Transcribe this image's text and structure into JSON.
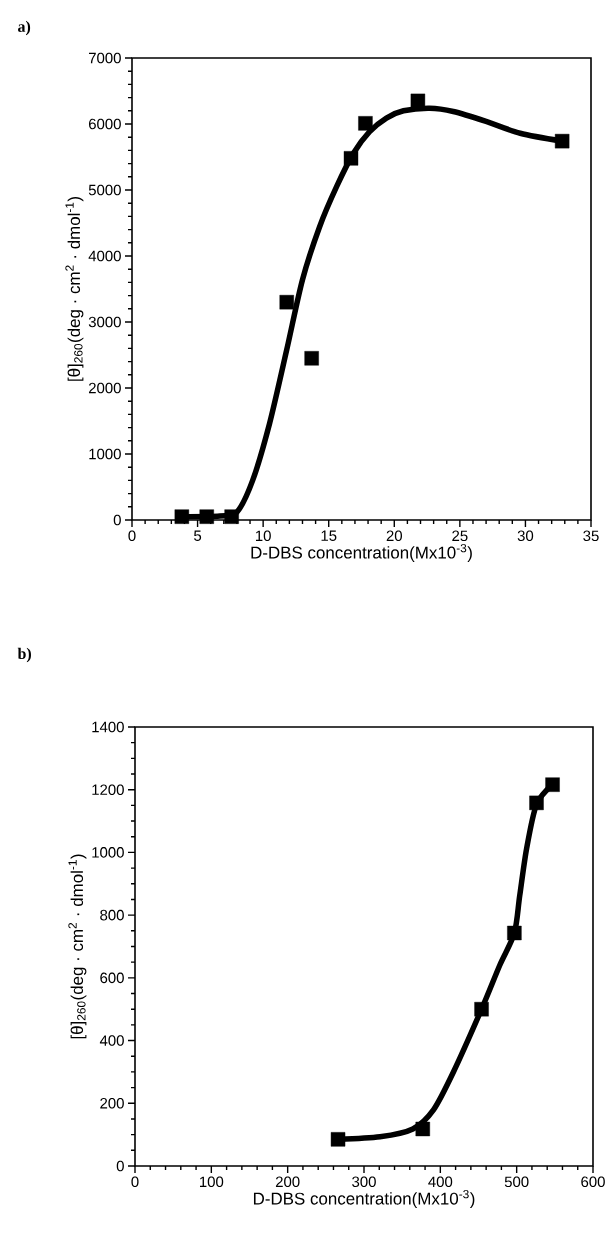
{
  "chart_data": [
    {
      "type": "scatter",
      "annotations": [
        "a)"
      ],
      "xlabel": "D-DBS concentration(Mx10$^{-3}$)",
      "ylabel": "[θ]$_{260}$(deg · cm$^{2}$ · dmol$^{-1}$)",
      "xlim": [
        0,
        35
      ],
      "xticks": [
        0,
        5,
        10,
        15,
        20,
        25,
        30,
        35
      ],
      "ylim": [
        0,
        7000
      ],
      "yticks": [
        0,
        1000,
        2000,
        3000,
        4000,
        5000,
        6000,
        7000
      ],
      "series": [
        {
          "type": "scatter",
          "marker": "square",
          "color": "#000000",
          "x": [
            3.8,
            5.7,
            7.6,
            11.8,
            13.7,
            16.7,
            17.8,
            21.8,
            32.8
          ],
          "values": [
            50,
            50,
            50,
            3300,
            2450,
            5480,
            6010,
            6350,
            5740
          ]
        },
        {
          "type": "line",
          "marker": "none",
          "line_style": "solid",
          "color": "#000000",
          "x": [
            3.8,
            6.7,
            8.0,
            9.2,
            10.5,
            11.8,
            13.0,
            14.3,
            15.6,
            16.9,
            18.1,
            19.4,
            20.7,
            22.7,
            24.5,
            27.0,
            29.6,
            32.8
          ],
          "values": [
            50,
            60,
            120,
            600,
            1470,
            2580,
            3640,
            4440,
            5050,
            5560,
            5880,
            6090,
            6200,
            6240,
            6190,
            6040,
            5860,
            5740
          ]
        }
      ]
    },
    {
      "type": "scatter",
      "annotations": [
        "b)"
      ],
      "xlabel": "D-DBS concentration(Mx10$^{-3}$)",
      "ylabel": "[θ]$_{260}$(deg · cm$^{2}$ · dmol$^{-1}$)",
      "xlim": [
        0,
        600
      ],
      "xticks": [
        0,
        100,
        200,
        300,
        400,
        500,
        600
      ],
      "ylim": [
        0,
        1400
      ],
      "yticks": [
        0,
        200,
        400,
        600,
        800,
        1000,
        1200,
        1400
      ],
      "series": [
        {
          "type": "scatter",
          "marker": "square",
          "color": "#000000",
          "x": [
            266,
            377,
            454,
            497,
            526,
            547
          ],
          "values": [
            85,
            118,
            500,
            743,
            1158,
            1216
          ]
        },
        {
          "type": "line",
          "marker": "none",
          "line_style": "solid",
          "color": "#000000",
          "x": [
            266,
            321,
            364,
            391,
            417,
            454,
            478,
            497,
            504,
            513,
            526,
            547
          ],
          "values": [
            85,
            93,
            118,
            179,
            299,
            500,
            641,
            743,
            862,
            1012,
            1153,
            1216
          ]
        }
      ]
    }
  ]
}
